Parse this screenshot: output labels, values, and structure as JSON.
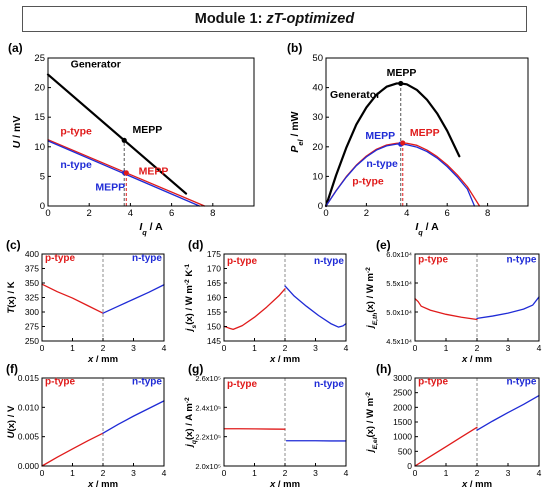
{
  "header": {
    "title": "Module 1:",
    "title_em": "zT-optimized"
  },
  "colors": {
    "generator": "#000000",
    "p_type": "#e01b1b",
    "n_type": "#1f2bd6",
    "frame": "#000000",
    "divider": "#808080",
    "title_border": "#555555"
  },
  "chart_data": [
    {
      "id": "a",
      "panel_label": "(a)",
      "type": "line",
      "xlabel": "I_q / A",
      "ylabel": "U / mV",
      "xlim": [
        0,
        10
      ],
      "ylim": [
        0,
        25
      ],
      "xticks": [
        0,
        2,
        4,
        6,
        8
      ],
      "yticks": [
        0,
        5,
        10,
        15,
        20,
        25
      ],
      "xtick_labels": [
        "0",
        "2",
        "4",
        "6",
        "8"
      ],
      "ytick_labels": [
        "0",
        "5",
        "10",
        "15",
        "20",
        "25"
      ],
      "series": [
        {
          "name": "Generator",
          "color": "#000000",
          "x": [
            0,
            6.7
          ],
          "y": [
            22.2,
            2.1
          ]
        },
        {
          "name": "p-type",
          "color": "#e01b1b",
          "x": [
            0,
            7.6
          ],
          "y": [
            11.2,
            0
          ]
        },
        {
          "name": "n-type",
          "color": "#1f2bd6",
          "x": [
            0,
            7.35
          ],
          "y": [
            11.0,
            0
          ]
        }
      ],
      "points": [
        {
          "x": 3.7,
          "y": 11.1,
          "color": "#000000"
        },
        {
          "x": 3.72,
          "y": 5.6,
          "color": "#1f2bd6"
        },
        {
          "x": 3.8,
          "y": 5.6,
          "color": "#e01b1b"
        }
      ],
      "guides": [
        {
          "x": 3.7,
          "y0": 0,
          "y1": 11.1,
          "color": "#555555"
        },
        {
          "x": 3.8,
          "y0": 0,
          "y1": 5.6,
          "color": "#e01b1b"
        }
      ],
      "annotations": [
        {
          "text": "Generator",
          "x": 1.1,
          "y": 23.4,
          "color": "#000000"
        },
        {
          "text": "MEPP",
          "x": 4.1,
          "y": 12.3,
          "color": "#000000"
        },
        {
          "text": "p-type",
          "x": 0.6,
          "y": 12.1,
          "color": "#e01b1b"
        },
        {
          "text": "n-type",
          "x": 0.6,
          "y": 6.4,
          "color": "#1f2bd6"
        },
        {
          "text": "MEPP",
          "x": 4.4,
          "y": 5.3,
          "color": "#e01b1b"
        },
        {
          "text": "MEPP",
          "x": 2.3,
          "y": 2.6,
          "color": "#1f2bd6"
        }
      ]
    },
    {
      "id": "b",
      "panel_label": "(b)",
      "type": "line",
      "xlabel": "I_q / A",
      "ylabel": "P_el / mW",
      "xlim": [
        0,
        10
      ],
      "ylim": [
        0,
        50
      ],
      "xticks": [
        0,
        2,
        4,
        6,
        8
      ],
      "yticks": [
        0,
        10,
        20,
        30,
        40,
        50
      ],
      "xtick_labels": [
        "0",
        "2",
        "4",
        "6",
        "8"
      ],
      "ytick_labels": [
        "0",
        "10",
        "20",
        "30",
        "40",
        "50"
      ],
      "series": [
        {
          "name": "Generator",
          "color": "#000000",
          "x": [
            0,
            0.5,
            1,
            1.5,
            2,
            2.5,
            3,
            3.5,
            3.7,
            4,
            4.5,
            5,
            5.5,
            6,
            6.6
          ],
          "y": [
            0,
            10.4,
            19.6,
            27.5,
            33.3,
            37.6,
            40.3,
            41.4,
            41.4,
            41.1,
            39.2,
            35.9,
            31.3,
            25.4,
            16.8
          ]
        },
        {
          "name": "p-type",
          "color": "#e01b1b",
          "x": [
            0,
            0.5,
            1,
            1.5,
            2,
            2.5,
            3,
            3.5,
            3.8,
            4,
            4.5,
            5,
            5.5,
            6,
            6.5,
            7,
            7.6
          ],
          "y": [
            0,
            5.2,
            9.9,
            13.8,
            16.9,
            19.2,
            20.6,
            21.2,
            21.3,
            21.2,
            20.5,
            18.9,
            16.7,
            13.9,
            10.5,
            6.5,
            0
          ]
        },
        {
          "name": "n-type",
          "color": "#1f2bd6",
          "x": [
            0,
            0.5,
            1,
            1.5,
            2,
            2.5,
            3,
            3.5,
            3.7,
            4,
            4.5,
            5,
            5.5,
            6,
            6.5,
            7,
            7.35
          ],
          "y": [
            0,
            5.1,
            9.7,
            13.6,
            16.6,
            18.9,
            20.3,
            20.9,
            20.9,
            20.7,
            19.9,
            18.4,
            16.2,
            13.3,
            9.8,
            5.7,
            0
          ]
        }
      ],
      "points": [
        {
          "x": 3.7,
          "y": 41.4,
          "color": "#000000"
        },
        {
          "x": 3.7,
          "y": 20.9,
          "color": "#1f2bd6"
        },
        {
          "x": 3.8,
          "y": 21.3,
          "color": "#e01b1b"
        }
      ],
      "guides": [
        {
          "x": 3.7,
          "y0": 0,
          "y1": 41.4,
          "color": "#555555"
        },
        {
          "x": 3.8,
          "y0": 0,
          "y1": 21.3,
          "color": "#e01b1b"
        }
      ],
      "annotations": [
        {
          "text": "MEPP",
          "x": 3.0,
          "y": 44.0,
          "color": "#000000"
        },
        {
          "text": "Generator",
          "x": 0.2,
          "y": 36.5,
          "color": "#000000"
        },
        {
          "text": "MEPP",
          "x": 1.95,
          "y": 22.6,
          "color": "#1f2bd6"
        },
        {
          "text": "MEPP",
          "x": 4.15,
          "y": 23.6,
          "color": "#e01b1b"
        },
        {
          "text": "n-type",
          "x": 2.0,
          "y": 13.2,
          "color": "#1f2bd6"
        },
        {
          "text": "p-type",
          "x": 1.3,
          "y": 7.3,
          "color": "#e01b1b"
        }
      ]
    },
    {
      "id": "c",
      "panel_label": "(c)",
      "type": "line",
      "xlabel": "x / mm",
      "ylabel": "T(x) / K",
      "xlim": [
        0,
        4
      ],
      "ylim": [
        250,
        400
      ],
      "xticks": [
        0,
        1,
        2,
        3,
        4
      ],
      "yticks": [
        250,
        275,
        300,
        325,
        350,
        375,
        400
      ],
      "xtick_labels": [
        "0",
        "1",
        "2",
        "3",
        "4"
      ],
      "ytick_labels": [
        "250",
        "275",
        "300",
        "325",
        "350",
        "375",
        "400"
      ],
      "series": [
        {
          "name": "p-type",
          "color": "#e01b1b",
          "x": [
            0,
            0.5,
            1,
            1.5,
            2
          ],
          "y": [
            348,
            335,
            324,
            311,
            298
          ]
        },
        {
          "name": "n-type",
          "color": "#1f2bd6",
          "x": [
            2,
            2.5,
            3,
            3.5,
            4
          ],
          "y": [
            298,
            310,
            322,
            334,
            347
          ]
        }
      ],
      "divider_x": 2,
      "annotations": [
        {
          "text": "p-type",
          "x": 0.1,
          "y": 388,
          "color": "#e01b1b"
        },
        {
          "text": "n-type",
          "x": 2.95,
          "y": 388,
          "color": "#1f2bd6"
        }
      ]
    },
    {
      "id": "d",
      "panel_label": "(d)",
      "type": "line",
      "xlabel": "x / mm",
      "ylabel": "j_s(x) / W m^-2 K^-1",
      "xlim": [
        0,
        4
      ],
      "ylim": [
        145,
        175
      ],
      "xticks": [
        0,
        1,
        2,
        3,
        4
      ],
      "yticks": [
        145,
        150,
        155,
        160,
        165,
        170,
        175
      ],
      "xtick_labels": [
        "0",
        "1",
        "2",
        "3",
        "4"
      ],
      "ytick_labels": [
        "145",
        "150",
        "155",
        "160",
        "165",
        "170",
        "175"
      ],
      "series": [
        {
          "name": "p-type",
          "color": "#e01b1b",
          "x": [
            0,
            0.15,
            0.3,
            0.6,
            1,
            1.4,
            1.8,
            2
          ],
          "y": [
            150.1,
            149.5,
            149.0,
            150.3,
            153.2,
            156.7,
            160.6,
            163.0
          ]
        },
        {
          "name": "n-type",
          "color": "#1f2bd6",
          "x": [
            2,
            2.3,
            2.7,
            3.1,
            3.5,
            3.75,
            3.9,
            4
          ],
          "y": [
            164.0,
            160.5,
            157.0,
            153.8,
            151.0,
            149.8,
            150.2,
            151.0
          ]
        }
      ],
      "divider_x": 2,
      "annotations": [
        {
          "text": "p-type",
          "x": 0.1,
          "y": 171.5,
          "color": "#e01b1b"
        },
        {
          "text": "n-type",
          "x": 2.95,
          "y": 171.5,
          "color": "#1f2bd6"
        }
      ]
    },
    {
      "id": "e",
      "panel_label": "(e)",
      "type": "line",
      "xlabel": "x / mm",
      "ylabel": "j_E,th(x) / W m^-2",
      "xlim": [
        0,
        4
      ],
      "ylim": [
        45000,
        60000
      ],
      "xticks": [
        0,
        1,
        2,
        3,
        4
      ],
      "yticks": [
        45000,
        50000,
        55000,
        60000
      ],
      "xtick_labels": [
        "0",
        "1",
        "2",
        "3",
        "4"
      ],
      "ytick_labels": [
        "4.5x10⁴",
        "5.0x10⁴",
        "5.5x10⁴",
        "6.0x10⁴"
      ],
      "series": [
        {
          "name": "p-type",
          "color": "#e01b1b",
          "x": [
            0,
            0.1,
            0.2,
            0.5,
            1,
            1.5,
            2
          ],
          "y": [
            52300,
            51800,
            51000,
            50300,
            49600,
            49100,
            48700
          ]
        },
        {
          "name": "n-type",
          "color": "#1f2bd6",
          "x": [
            2,
            2.5,
            3,
            3.5,
            3.8,
            4
          ],
          "y": [
            48900,
            49300,
            49800,
            50500,
            51200,
            52600
          ]
        }
      ],
      "divider_x": 2,
      "annotations": [
        {
          "text": "p-type",
          "x": 0.1,
          "y": 58500,
          "color": "#e01b1b"
        },
        {
          "text": "n-type",
          "x": 2.95,
          "y": 58500,
          "color": "#1f2bd6"
        }
      ]
    },
    {
      "id": "f",
      "panel_label": "(f)",
      "type": "line",
      "xlabel": "x / mm",
      "ylabel": "U(x) / V",
      "xlim": [
        0,
        4
      ],
      "ylim": [
        0,
        0.015
      ],
      "xticks": [
        0,
        1,
        2,
        3,
        4
      ],
      "yticks": [
        0,
        0.005,
        0.01,
        0.015
      ],
      "xtick_labels": [
        "0",
        "1",
        "2",
        "3",
        "4"
      ],
      "ytick_labels": [
        "0.000",
        "0.005",
        "0.010",
        "0.015"
      ],
      "series": [
        {
          "name": "p-type",
          "color": "#e01b1b",
          "x": [
            0,
            0.5,
            1,
            1.5,
            2
          ],
          "y": [
            0,
            0.0015,
            0.0029,
            0.0043,
            0.0056
          ]
        },
        {
          "name": "n-type",
          "color": "#1f2bd6",
          "x": [
            2,
            2.5,
            3,
            3.5,
            4
          ],
          "y": [
            0.0056,
            0.0071,
            0.0085,
            0.0098,
            0.0111
          ]
        }
      ],
      "divider_x": 2,
      "annotations": [
        {
          "text": "p-type",
          "x": 0.1,
          "y": 0.0139,
          "color": "#e01b1b"
        },
        {
          "text": "n-type",
          "x": 2.95,
          "y": 0.0139,
          "color": "#1f2bd6"
        }
      ]
    },
    {
      "id": "g",
      "panel_label": "(g)",
      "type": "line",
      "xlabel": "x / mm",
      "ylabel": "j_q(x) / A m^-2",
      "xlim": [
        0,
        4
      ],
      "ylim": [
        200000,
        260000
      ],
      "xticks": [
        0,
        1,
        2,
        3,
        4
      ],
      "yticks": [
        200000,
        220000,
        240000,
        260000
      ],
      "xtick_labels": [
        "0",
        "1",
        "2",
        "3",
        "4"
      ],
      "ytick_labels": [
        "2.0x10⁵",
        "2.2x10⁵",
        "2.4x10⁵",
        "2.6x10⁵"
      ],
      "series": [
        {
          "name": "p-type",
          "color": "#e01b1b",
          "x": [
            0,
            0.5,
            1,
            1.5,
            2
          ],
          "y": [
            225400,
            225400,
            225300,
            225200,
            225100
          ]
        },
        {
          "name": "n-type",
          "color": "#1f2bd6",
          "x": [
            2.05,
            2.5,
            3,
            3.5,
            4
          ],
          "y": [
            217200,
            217200,
            217200,
            217100,
            217100
          ]
        }
      ],
      "divider_x": 2,
      "annotations": [
        {
          "text": "p-type",
          "x": 0.1,
          "y": 254000,
          "color": "#e01b1b"
        },
        {
          "text": "n-type",
          "x": 2.95,
          "y": 254000,
          "color": "#1f2bd6"
        }
      ]
    },
    {
      "id": "h",
      "panel_label": "(h)",
      "type": "line",
      "xlabel": "x / mm",
      "ylabel": "j_E,el(x) / W m^-2",
      "xlim": [
        0,
        4
      ],
      "ylim": [
        0,
        3000
      ],
      "xticks": [
        0,
        1,
        2,
        3,
        4
      ],
      "yticks": [
        0,
        500,
        1000,
        1500,
        2000,
        2500,
        3000
      ],
      "xtick_labels": [
        "0",
        "1",
        "2",
        "3",
        "4"
      ],
      "ytick_labels": [
        "0",
        "500",
        "1000",
        "1500",
        "2000",
        "2500",
        "3000"
      ],
      "series": [
        {
          "name": "p-type",
          "color": "#e01b1b",
          "x": [
            0,
            0.5,
            1,
            1.5,
            2
          ],
          "y": [
            0,
            330,
            660,
            990,
            1320
          ]
        },
        {
          "name": "n-type",
          "color": "#1f2bd6",
          "x": [
            2,
            2.5,
            3,
            3.5,
            4
          ],
          "y": [
            1220,
            1530,
            1820,
            2100,
            2400
          ]
        }
      ],
      "divider_x": 2,
      "annotations": [
        {
          "text": "p-type",
          "x": 0.1,
          "y": 2780,
          "color": "#e01b1b"
        },
        {
          "text": "n-type",
          "x": 2.95,
          "y": 2780,
          "color": "#1f2bd6"
        }
      ]
    }
  ]
}
